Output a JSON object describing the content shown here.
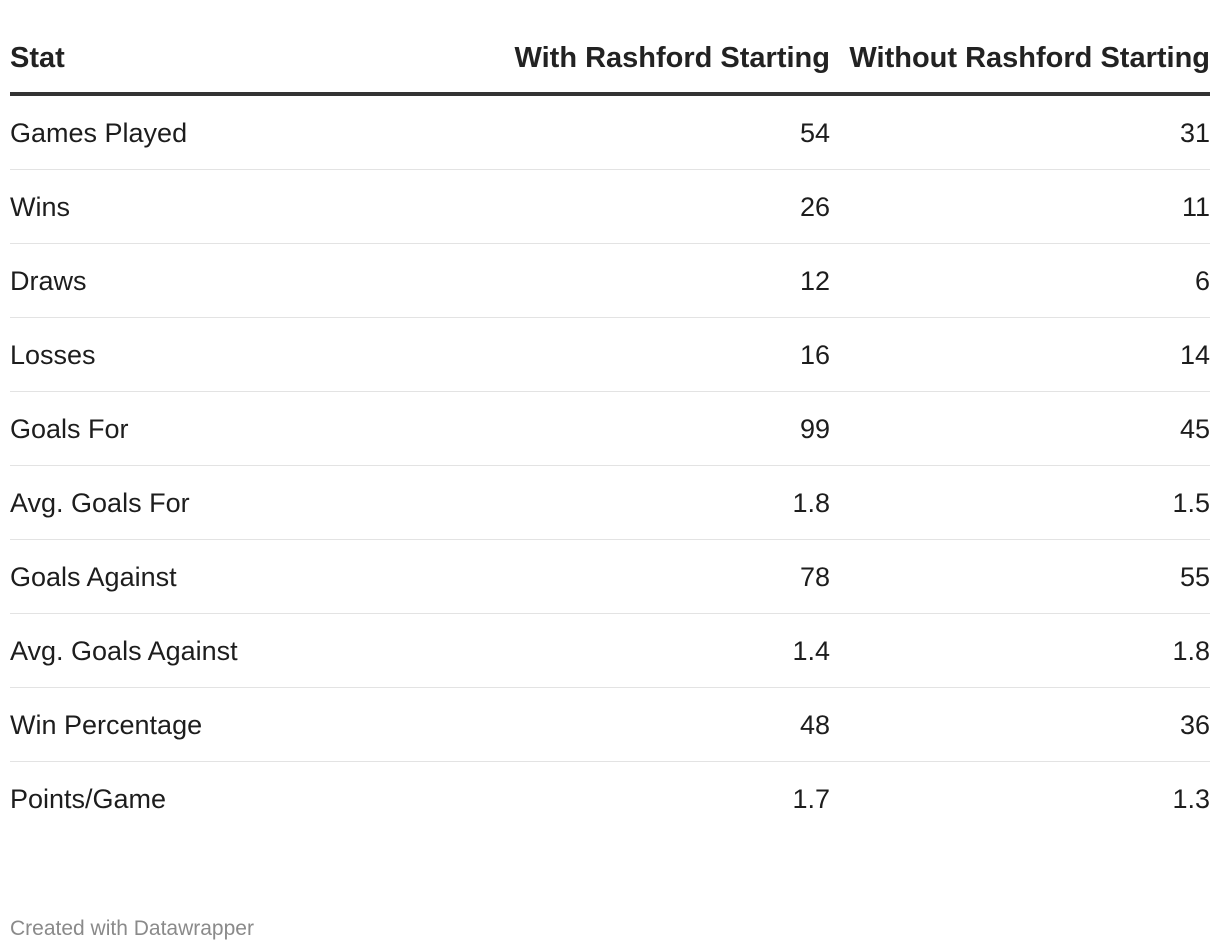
{
  "chart_data": {
    "type": "table",
    "columns": [
      "Stat",
      "With Rashford Starting",
      "Without Rashford Starting"
    ],
    "rows": [
      {
        "stat": "Games Played",
        "with": "54",
        "without": "31"
      },
      {
        "stat": "Wins",
        "with": "26",
        "without": "11"
      },
      {
        "stat": "Draws",
        "with": "12",
        "without": "6"
      },
      {
        "stat": "Losses",
        "with": "16",
        "without": "14"
      },
      {
        "stat": "Goals For",
        "with": "99",
        "without": "45"
      },
      {
        "stat": "Avg. Goals For",
        "with": "1.8",
        "without": "1.5"
      },
      {
        "stat": "Goals Against",
        "with": "78",
        "without": "55"
      },
      {
        "stat": "Avg. Goals Against",
        "with": "1.4",
        "without": "1.8"
      },
      {
        "stat": "Win Percentage",
        "with": "48",
        "without": "36"
      },
      {
        "stat": "Points/Game",
        "with": "1.7",
        "without": "1.3"
      }
    ]
  },
  "footer": {
    "credit": "Created with Datawrapper"
  }
}
